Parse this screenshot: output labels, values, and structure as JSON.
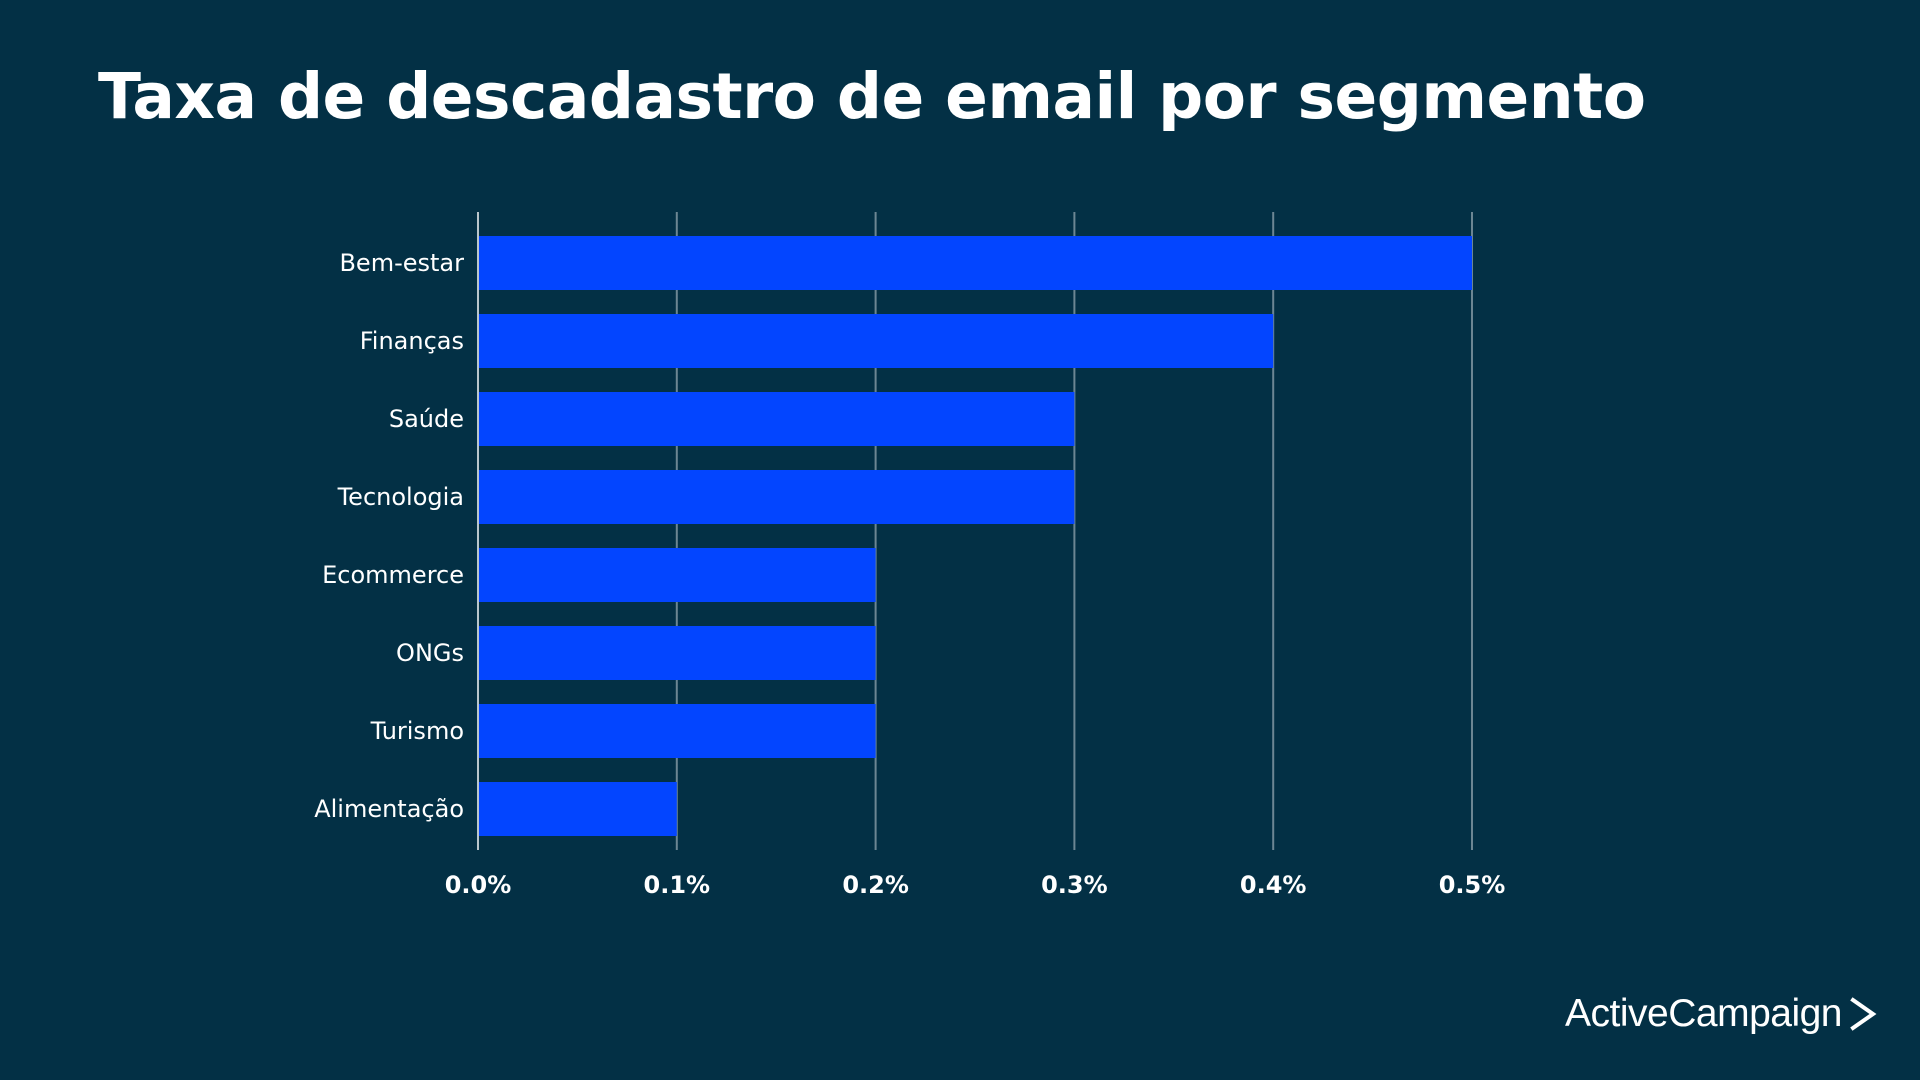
{
  "title": "Taxa de descadastro de email por segmento",
  "brand": {
    "name": "ActiveCampaign",
    "icon": "chevron-right-icon"
  },
  "colors": {
    "background": "#033045",
    "bar": "#0345ff",
    "text": "#ffffff",
    "grid": "#8fa3ad"
  },
  "chart_data": {
    "type": "bar",
    "orientation": "horizontal",
    "title": "Taxa de descadastro de email por segmento",
    "categories": [
      "Bem-estar",
      "Finanças",
      "Saúde",
      "Tecnologia",
      "Ecommerce",
      "ONGs",
      "Turismo",
      "Alimentação"
    ],
    "values": [
      0.5,
      0.4,
      0.3,
      0.3,
      0.2,
      0.2,
      0.2,
      0.1
    ],
    "unit": "%",
    "xlim": [
      0,
      0.5
    ],
    "xticks": [
      0.0,
      0.1,
      0.2,
      0.3,
      0.4,
      0.5
    ],
    "xtick_labels": [
      "0.0%",
      "0.1%",
      "0.2%",
      "0.3%",
      "0.4%",
      "0.5%"
    ],
    "xlabel": "",
    "ylabel": "",
    "grid": true,
    "legend": "none"
  }
}
